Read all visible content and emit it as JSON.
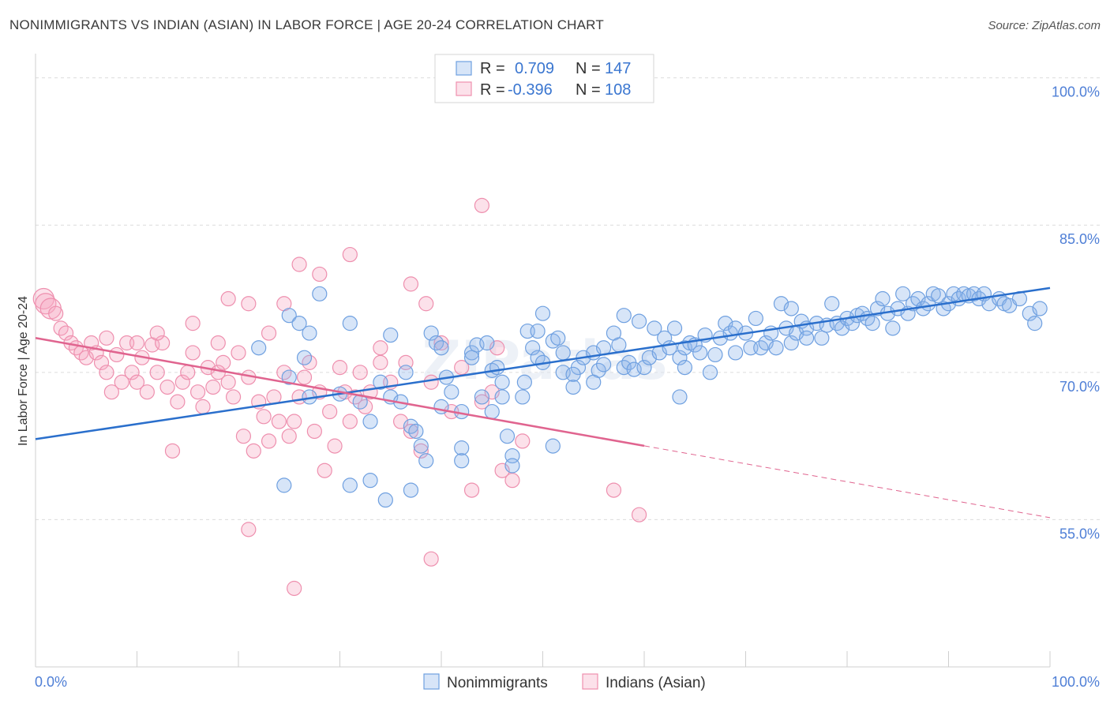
{
  "header": {
    "title": "NONIMMIGRANTS VS INDIAN (ASIAN) IN LABOR FORCE | AGE 20-24 CORRELATION CHART",
    "source": "Source: ZipAtlas.com"
  },
  "watermark": "ZIPatlas",
  "colors": {
    "blue": "#6fa0e0",
    "blue_fill": "rgba(140,180,235,0.35)",
    "blue_line": "#2a6fcc",
    "pink": "#ee8fae",
    "pink_fill": "rgba(245,170,195,0.35)",
    "pink_line": "#e0648f",
    "axis_text": "#4f7fd6",
    "grid": "#dcdcdc"
  },
  "legend_top": {
    "rows": [
      {
        "r_label": "R =",
        "r_value": "0.709",
        "n_label": "N =",
        "n_value": "147",
        "swatch": "blue"
      },
      {
        "r_label": "R =",
        "r_value": "-0.396",
        "n_label": "N =",
        "n_value": "108",
        "swatch": "pink"
      }
    ]
  },
  "chart_data": {
    "type": "scatter",
    "title": "NONIMMIGRANTS VS INDIAN (ASIAN) IN LABOR FORCE | AGE 20-24 CORRELATION CHART",
    "xlabel": "",
    "ylabel": "In Labor Force | Age 20-24",
    "xlim": [
      0,
      100
    ],
    "ylim": [
      40,
      101.5
    ],
    "x_tick_labels": [
      "0.0%",
      "100.0%"
    ],
    "y_ticks": [
      100,
      85,
      70,
      55
    ],
    "y_tick_labels": [
      "100.0%",
      "85.0%",
      "70.0%",
      "55.0%"
    ],
    "grid": true,
    "legend_position": "bottom-center",
    "series": [
      {
        "name": "Nonimmigrants",
        "color": "blue",
        "trend": {
          "x": [
            0,
            100
          ],
          "y": [
            63.2,
            78.6
          ],
          "dashed_after": null
        },
        "points": [
          [
            22,
            72.5
          ],
          [
            25,
            75.8
          ],
          [
            26,
            75
          ],
          [
            27,
            74
          ],
          [
            28,
            78
          ],
          [
            25,
            69.5
          ],
          [
            26.5,
            71.5
          ],
          [
            27,
            67.5
          ],
          [
            30,
            67.8
          ],
          [
            31,
            75
          ],
          [
            33,
            65
          ],
          [
            34,
            69
          ],
          [
            35,
            67.5
          ],
          [
            35,
            73.8
          ],
          [
            36,
            67
          ],
          [
            37,
            64.5
          ],
          [
            37.5,
            64
          ],
          [
            38,
            62.5
          ],
          [
            38.5,
            61
          ],
          [
            39,
            74
          ],
          [
            39.5,
            73
          ],
          [
            40,
            72.5
          ],
          [
            40,
            66.5
          ],
          [
            40.5,
            69.5
          ],
          [
            41,
            68
          ],
          [
            42,
            66
          ],
          [
            42,
            62.3
          ],
          [
            43,
            72
          ],
          [
            43.5,
            72.8
          ],
          [
            44,
            67.5
          ],
          [
            45,
            70.2
          ],
          [
            45.5,
            70.5
          ],
          [
            46,
            69
          ],
          [
            46,
            67.5
          ],
          [
            47,
            61.5
          ],
          [
            48,
            67.5
          ],
          [
            48.5,
            74.2
          ],
          [
            49,
            72.5
          ],
          [
            49.5,
            71.5
          ],
          [
            50,
            71
          ],
          [
            51,
            73.2
          ],
          [
            51.5,
            73.5
          ],
          [
            52,
            70
          ],
          [
            53,
            68.5
          ],
          [
            53.5,
            70.5
          ],
          [
            54,
            71.5
          ],
          [
            55,
            72
          ],
          [
            55.5,
            70.2
          ],
          [
            56,
            70.8
          ],
          [
            57,
            74
          ],
          [
            57.5,
            72.8
          ],
          [
            58,
            70.5
          ],
          [
            58.5,
            71
          ],
          [
            59,
            70.3
          ],
          [
            59.5,
            75.2
          ],
          [
            60,
            70.5
          ],
          [
            60.5,
            71.5
          ],
          [
            61,
            74.5
          ],
          [
            61.5,
            72
          ],
          [
            62,
            73.5
          ],
          [
            62.5,
            72.5
          ],
          [
            63,
            74.5
          ],
          [
            63.5,
            71.5
          ],
          [
            64,
            72.5
          ],
          [
            64.5,
            73
          ],
          [
            65,
            72.8
          ],
          [
            65.5,
            72
          ],
          [
            66,
            73.8
          ],
          [
            66.5,
            70
          ],
          [
            67,
            71.8
          ],
          [
            67.5,
            73.5
          ],
          [
            68,
            75
          ],
          [
            68.5,
            74
          ],
          [
            69,
            74.5
          ],
          [
            70,
            74
          ],
          [
            70.5,
            72.5
          ],
          [
            71,
            75.5
          ],
          [
            71.5,
            72.5
          ],
          [
            72,
            73
          ],
          [
            72.5,
            74
          ],
          [
            73,
            72.5
          ],
          [
            73.5,
            77
          ],
          [
            74,
            74.5
          ],
          [
            74.5,
            73
          ],
          [
            75,
            74
          ],
          [
            75.5,
            75.2
          ],
          [
            76,
            74.5
          ],
          [
            77,
            75
          ],
          [
            77.5,
            73.5
          ],
          [
            78,
            74.8
          ],
          [
            78.5,
            77
          ],
          [
            79,
            75
          ],
          [
            79.5,
            74.5
          ],
          [
            80,
            75.5
          ],
          [
            80.5,
            75
          ],
          [
            81,
            75.8
          ],
          [
            81.5,
            76
          ],
          [
            82,
            75.5
          ],
          [
            82.5,
            75
          ],
          [
            83,
            76.5
          ],
          [
            83.5,
            77.5
          ],
          [
            84,
            76
          ],
          [
            84.5,
            74.5
          ],
          [
            85,
            76.5
          ],
          [
            85.5,
            78
          ],
          [
            86,
            76
          ],
          [
            86.5,
            77
          ],
          [
            87,
            77.5
          ],
          [
            87.5,
            76.5
          ],
          [
            88,
            77
          ],
          [
            88.5,
            78
          ],
          [
            89,
            77.8
          ],
          [
            89.5,
            76.5
          ],
          [
            90,
            77
          ],
          [
            90.5,
            78
          ],
          [
            91,
            77.5
          ],
          [
            91.5,
            78
          ],
          [
            92,
            77.8
          ],
          [
            92.5,
            78
          ],
          [
            93,
            77.5
          ],
          [
            93.5,
            78
          ],
          [
            94,
            77
          ],
          [
            95,
            77.5
          ],
          [
            95.5,
            77
          ],
          [
            96,
            76.8
          ],
          [
            97,
            77.5
          ],
          [
            98,
            76
          ],
          [
            98.5,
            75
          ],
          [
            99,
            76.5
          ],
          [
            48.2,
            69
          ],
          [
            55,
            69
          ],
          [
            42,
            61
          ],
          [
            53,
            69.8
          ],
          [
            63.5,
            67.5
          ],
          [
            64,
            70.5
          ],
          [
            45,
            66
          ],
          [
            46.5,
            63.5
          ],
          [
            51,
            62.5
          ],
          [
            33,
            59
          ],
          [
            31,
            58.5
          ],
          [
            24.5,
            58.5
          ],
          [
            34.5,
            57
          ],
          [
            37,
            58
          ],
          [
            47,
            60.5
          ],
          [
            32,
            67
          ],
          [
            36.5,
            70
          ],
          [
            44.5,
            73
          ],
          [
            50,
            76
          ],
          [
            52,
            72
          ],
          [
            43,
            71.5
          ],
          [
            49.5,
            74.2
          ],
          [
            58,
            75.8
          ],
          [
            56,
            72.5
          ],
          [
            69,
            72
          ],
          [
            74.5,
            76.5
          ],
          [
            76,
            73.5
          ]
        ]
      },
      {
        "name": "Indians (Asian)",
        "color": "pink",
        "trend": {
          "x": [
            0,
            100
          ],
          "y": [
            73.5,
            55.2
          ],
          "dashed_after": 60
        },
        "points": [
          [
            0.8,
            77.5
          ],
          [
            1,
            77
          ],
          [
            1.5,
            76.5
          ],
          [
            2,
            76
          ],
          [
            2.5,
            74.5
          ],
          [
            3,
            74
          ],
          [
            3.5,
            73
          ],
          [
            4,
            72.5
          ],
          [
            4.5,
            72
          ],
          [
            5,
            71.5
          ],
          [
            5.5,
            73
          ],
          [
            6,
            72
          ],
          [
            6.5,
            71
          ],
          [
            7,
            70
          ],
          [
            7.5,
            68
          ],
          [
            8,
            71.8
          ],
          [
            8.5,
            69
          ],
          [
            9,
            73
          ],
          [
            9.5,
            70
          ],
          [
            10,
            69
          ],
          [
            10.5,
            71.5
          ],
          [
            11,
            68
          ],
          [
            11.5,
            72.8
          ],
          [
            12,
            70
          ],
          [
            12.5,
            73
          ],
          [
            13,
            68.5
          ],
          [
            13.5,
            62
          ],
          [
            14,
            67
          ],
          [
            14.5,
            69
          ],
          [
            15,
            70
          ],
          [
            15.5,
            72
          ],
          [
            16,
            68
          ],
          [
            16.5,
            66.5
          ],
          [
            17,
            70.5
          ],
          [
            17.5,
            68.5
          ],
          [
            18,
            73
          ],
          [
            18.5,
            71
          ],
          [
            19,
            69
          ],
          [
            19.5,
            67.5
          ],
          [
            20,
            72
          ],
          [
            20.5,
            63.5
          ],
          [
            21,
            69.5
          ],
          [
            21.5,
            62
          ],
          [
            22,
            67
          ],
          [
            22.5,
            65.5
          ],
          [
            23,
            63
          ],
          [
            23.5,
            67.5
          ],
          [
            24,
            65
          ],
          [
            24.5,
            70
          ],
          [
            25,
            63.5
          ],
          [
            25.5,
            65
          ],
          [
            26,
            67.5
          ],
          [
            26.5,
            69.5
          ],
          [
            27,
            71
          ],
          [
            27.5,
            64
          ],
          [
            28,
            68
          ],
          [
            28.5,
            60
          ],
          [
            29,
            66
          ],
          [
            29.5,
            62.5
          ],
          [
            30,
            70.5
          ],
          [
            30.5,
            68
          ],
          [
            31,
            65
          ],
          [
            31.5,
            67.5
          ],
          [
            32,
            70
          ],
          [
            32.5,
            66.5
          ],
          [
            33,
            68
          ],
          [
            34,
            71
          ],
          [
            35,
            69
          ],
          [
            36,
            65
          ],
          [
            37,
            64
          ],
          [
            38,
            62
          ],
          [
            39,
            69
          ],
          [
            40,
            73
          ],
          [
            41,
            66
          ],
          [
            42,
            70.5
          ],
          [
            43,
            58
          ],
          [
            44,
            67
          ],
          [
            45,
            68
          ],
          [
            46,
            60
          ],
          [
            47,
            59
          ],
          [
            48,
            63
          ],
          [
            38.5,
            77
          ],
          [
            37,
            79
          ],
          [
            28,
            80
          ],
          [
            26,
            81
          ],
          [
            21,
            77
          ],
          [
            19,
            77.5
          ],
          [
            15.5,
            75
          ],
          [
            23,
            74
          ],
          [
            12,
            74
          ],
          [
            10,
            73
          ],
          [
            44,
            87
          ],
          [
            31,
            82
          ],
          [
            25.5,
            48
          ],
          [
            39,
            51
          ],
          [
            57,
            58
          ],
          [
            59.5,
            55.5
          ],
          [
            36.5,
            71
          ],
          [
            21,
            54
          ],
          [
            18,
            70
          ],
          [
            7,
            73.5
          ],
          [
            24.5,
            77
          ],
          [
            34,
            72.5
          ],
          [
            45.5,
            72.5
          ]
        ]
      }
    ]
  },
  "legend_bottom": {
    "items": [
      {
        "label": "Nonimmigrants",
        "swatch": "blue"
      },
      {
        "label": "Indians (Asian)",
        "swatch": "pink"
      }
    ]
  }
}
